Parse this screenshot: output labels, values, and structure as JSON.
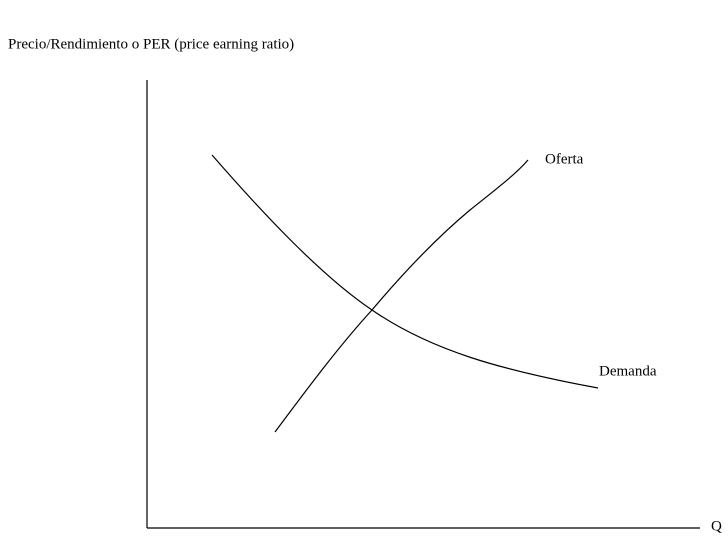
{
  "axes": {
    "y_label": "Precio/Rendimiento o PER (price earning ratio)",
    "x_label": "Q"
  },
  "curves": [
    {
      "label": "Oferta"
    },
    {
      "label": "Demanda"
    }
  ]
}
